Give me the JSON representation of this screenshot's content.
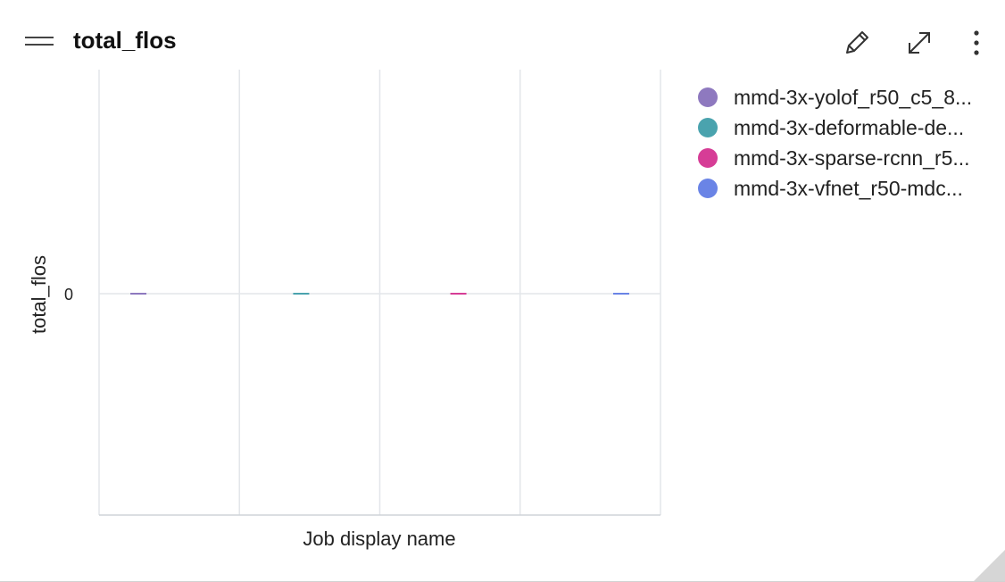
{
  "panel": {
    "title": "total_flos",
    "icons": {
      "drag": "drag-handle-icon",
      "edit": "pencil-icon",
      "expand": "expand-icon",
      "more": "more-vertical-icon"
    }
  },
  "chart_data": {
    "type": "bar",
    "title": "",
    "xlabel": "Job display name",
    "ylabel": "total_flos",
    "y_ticks": [
      "0"
    ],
    "grid": true,
    "legend_position": "right",
    "series": [
      {
        "name": "mmd-3x-yolof_r50_c5_8...",
        "value": 0,
        "color": "#8e79bf"
      },
      {
        "name": "mmd-3x-deformable-de...",
        "value": 0,
        "color": "#4aa3ae"
      },
      {
        "name": "mmd-3x-sparse-rcnn_r5...",
        "value": 0,
        "color": "#d63d96"
      },
      {
        "name": "mmd-3x-vfnet_r50-mdc...",
        "value": 0,
        "color": "#6a84e6"
      }
    ]
  }
}
